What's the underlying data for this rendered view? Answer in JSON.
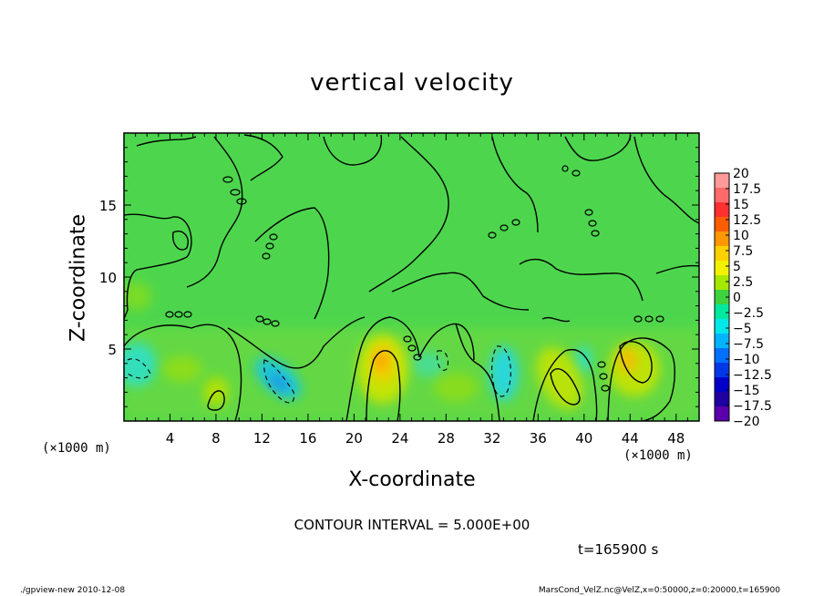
{
  "chart_data": {
    "type": "heatmap",
    "title": "vertical velocity",
    "xlabel": "X-coordinate",
    "ylabel": "Z-coordinate",
    "x_unit_label": "(×1000 m)",
    "xlim": [
      0,
      50
    ],
    "ylim": [
      0,
      20
    ],
    "x_ticks": [
      4,
      8,
      12,
      16,
      20,
      24,
      28,
      32,
      36,
      40,
      44,
      48
    ],
    "y_ticks": [
      5,
      10,
      15
    ],
    "contour_interval_label": "CONTOUR INTERVAL = 5.000E+00",
    "time_label": "t=165900 s",
    "colorbar": {
      "labels": [
        "20",
        "17.5",
        "15",
        "12.5",
        "10",
        "7.5",
        "5",
        "2.5",
        "0",
        "−2.5",
        "−5",
        "−7.5",
        "−10",
        "−12.5",
        "−15",
        "−17.5",
        "−20"
      ],
      "colors": [
        "#ff9a9a",
        "#ff6b6b",
        "#ff3030",
        "#ff5e00",
        "#ff9800",
        "#ffd000",
        "#f2f200",
        "#a6e800",
        "#3fd23f",
        "#00e8a0",
        "#00e8e8",
        "#00b4ff",
        "#0070ff",
        "#0038e8",
        "#0000c8",
        "#2000a0",
        "#5a00aa"
      ]
    },
    "background_value_color": "#4dd64d",
    "features": [
      {
        "kind": "updraft",
        "x": 22,
        "z": 3.8,
        "peak": 10
      },
      {
        "kind": "updraft",
        "x": 37.5,
        "z": 3.2,
        "peak": 7.5
      },
      {
        "kind": "updraft",
        "x": 44,
        "z": 4.0,
        "peak": 10
      },
      {
        "kind": "updraft",
        "x": 8,
        "z": 2.2,
        "peak": 7.5
      },
      {
        "kind": "downdraft",
        "x": 13.8,
        "z": 2.4,
        "peak": -10
      },
      {
        "kind": "downdraft",
        "x": 33,
        "z": 3.2,
        "peak": -7.5
      },
      {
        "kind": "downdraft",
        "x": 1.5,
        "z": 4.2,
        "peak": -7.5
      }
    ]
  },
  "footer": {
    "left": "./gpview-new  2010-12-08",
    "right": "MarsCond_VelZ.nc@VelZ,x=0:50000,z=0:20000,t=165900"
  }
}
